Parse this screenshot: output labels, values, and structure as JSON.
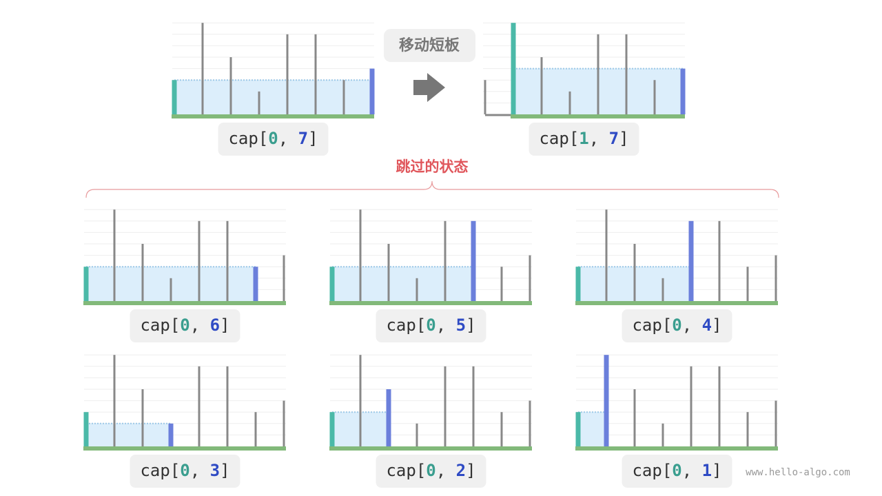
{
  "heights": [
    3,
    8,
    5,
    2,
    7,
    7,
    3,
    4
  ],
  "action": "移动短板",
  "skipped_title": "跳过的状态",
  "label_parts": {
    "prefix": "cap[",
    "sep": ", ",
    "suffix": "]"
  },
  "panels": [
    {
      "i": 0,
      "j": 7
    },
    {
      "i": 1,
      "j": 7
    },
    {
      "i": 0,
      "j": 6
    },
    {
      "i": 0,
      "j": 5
    },
    {
      "i": 0,
      "j": 4
    },
    {
      "i": 0,
      "j": 3
    },
    {
      "i": 0,
      "j": 2
    },
    {
      "i": 0,
      "j": 1
    }
  ],
  "watermark": "www.hello-algo.com"
}
